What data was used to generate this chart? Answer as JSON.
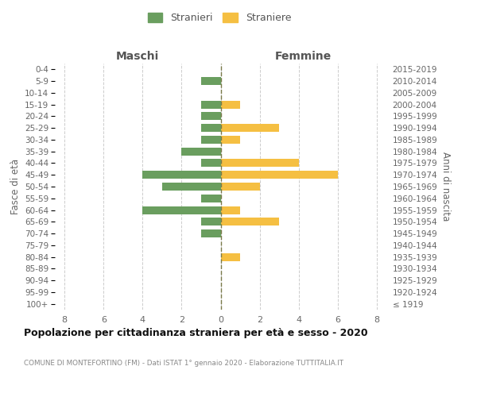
{
  "age_groups": [
    "100+",
    "95-99",
    "90-94",
    "85-89",
    "80-84",
    "75-79",
    "70-74",
    "65-69",
    "60-64",
    "55-59",
    "50-54",
    "45-49",
    "40-44",
    "35-39",
    "30-34",
    "25-29",
    "20-24",
    "15-19",
    "10-14",
    "5-9",
    "0-4"
  ],
  "birth_years": [
    "≤ 1919",
    "1920-1924",
    "1925-1929",
    "1930-1934",
    "1935-1939",
    "1940-1944",
    "1945-1949",
    "1950-1954",
    "1955-1959",
    "1960-1964",
    "1965-1969",
    "1970-1974",
    "1975-1979",
    "1980-1984",
    "1985-1989",
    "1990-1994",
    "1995-1999",
    "2000-2004",
    "2005-2009",
    "2010-2014",
    "2015-2019"
  ],
  "maschi": [
    0,
    0,
    0,
    0,
    0,
    0,
    1,
    1,
    4,
    1,
    3,
    4,
    1,
    2,
    1,
    1,
    1,
    1,
    0,
    1,
    0
  ],
  "femmine": [
    0,
    0,
    0,
    0,
    1,
    0,
    0,
    3,
    1,
    0,
    2,
    6,
    4,
    0,
    1,
    3,
    0,
    1,
    0,
    0,
    0
  ],
  "male_color": "#6a9e5f",
  "female_color": "#f5bf42",
  "center_line_color": "#7a7a4a",
  "title": "Popolazione per cittadinanza straniera per età e sesso - 2020",
  "subtitle": "COMUNE DI MONTEFORTINO (FM) - Dati ISTAT 1° gennaio 2020 - Elaborazione TUTTITALIA.IT",
  "xlabel_left": "Maschi",
  "xlabel_right": "Femmine",
  "ylabel_left": "Fasce di età",
  "ylabel_right": "Anni di nascita",
  "legend_male": "Stranieri",
  "legend_female": "Straniere",
  "xlim": 8.5,
  "xticks": [
    -8,
    -6,
    -4,
    -2,
    0,
    2,
    4,
    6,
    8
  ],
  "background_color": "#ffffff",
  "grid_color": "#cccccc"
}
